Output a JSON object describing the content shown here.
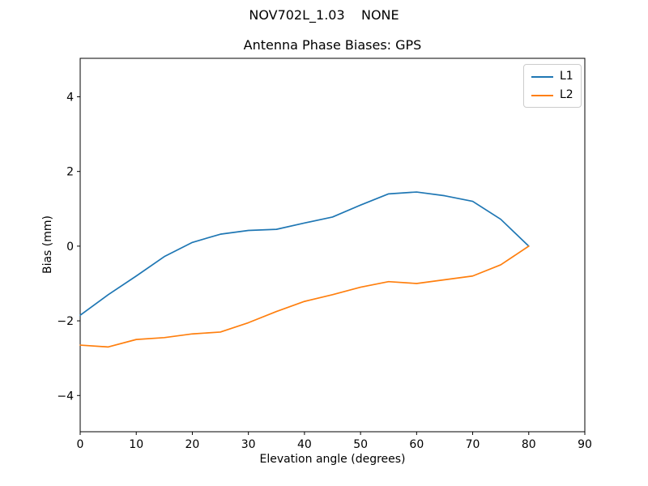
{
  "chart_data": {
    "type": "line",
    "suptitle": "NOV702L_1.03    NONE",
    "title": "Antenna Phase Biases: GPS",
    "xlabel": "Elevation angle (degrees)",
    "ylabel": "Bias (mm)",
    "xlim": [
      0,
      90
    ],
    "ylim": [
      -4.97,
      5.03
    ],
    "xticks": [
      0,
      10,
      20,
      30,
      40,
      50,
      60,
      70,
      80,
      90
    ],
    "yticks": [
      -4,
      -2,
      0,
      2,
      4
    ],
    "grid": false,
    "legend_position": "upper right",
    "x": [
      0,
      5,
      10,
      15,
      20,
      25,
      30,
      35,
      40,
      45,
      50,
      55,
      60,
      65,
      70,
      75,
      80
    ],
    "series": [
      {
        "name": "L1",
        "color": "#1f77b4",
        "values": [
          -1.85,
          -1.3,
          -0.8,
          -0.28,
          0.1,
          0.32,
          0.42,
          0.45,
          0.62,
          0.78,
          1.1,
          1.4,
          1.45,
          1.35,
          1.2,
          0.72,
          0.0
        ]
      },
      {
        "name": "L2",
        "color": "#ff7f0e",
        "values": [
          -2.65,
          -2.7,
          -2.5,
          -2.45,
          -2.35,
          -2.3,
          -2.05,
          -1.75,
          -1.48,
          -1.3,
          -1.1,
          -0.95,
          -1.0,
          -0.9,
          -0.8,
          -0.5,
          0.0
        ]
      }
    ]
  }
}
